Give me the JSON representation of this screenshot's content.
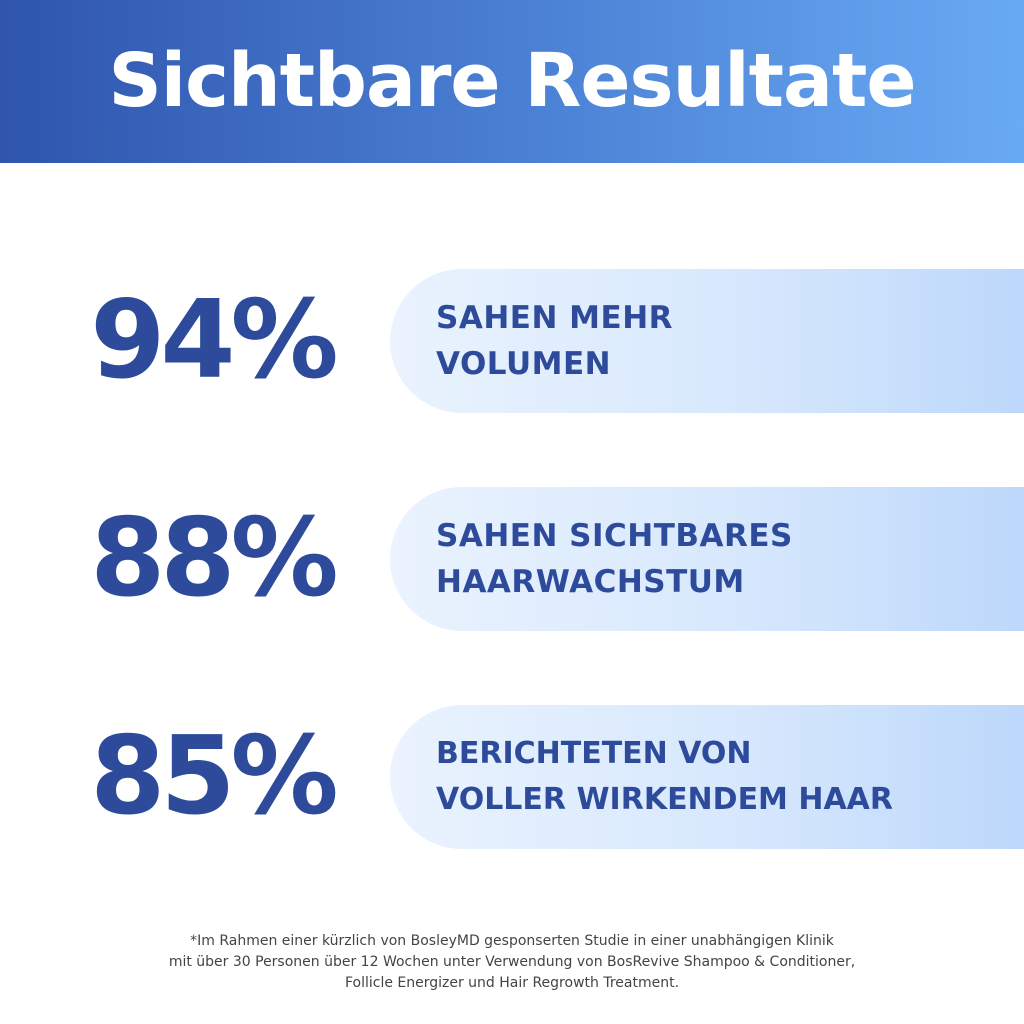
{
  "header": {
    "title": "Sichtbare Resultate"
  },
  "stats": [
    {
      "percent": "94%",
      "label_lines": [
        "SAHEN MEHR",
        "VOLUMEN"
      ]
    },
    {
      "percent": "88%",
      "label_lines": [
        "SAHEN SICHTBARES",
        "HAARWACHSTUM"
      ]
    },
    {
      "percent": "85%",
      "label_lines": [
        "BERICHTETEN VON",
        "VOLLER WIRKENDEM HAAR"
      ]
    }
  ],
  "footnote": {
    "lines": [
      "*Im Rahmen einer kürzlich von BosleyMD gesponserten Studie in einer unabhängigen Klinik",
      "mit über 30 Personen über 12 Wochen unter Verwendung von BosRevive Shampoo & Conditioner,",
      "Follicle Energizer und Hair Regrowth Treatment."
    ]
  },
  "colors": {
    "header_gradient_start": "#2f55ad",
    "header_gradient_end": "#69aaf4",
    "stat_text": "#2d4b9a",
    "pill_light": "#eaf3fe",
    "pill_dark": "#bdd8fb",
    "footnote_text": "#444444"
  }
}
